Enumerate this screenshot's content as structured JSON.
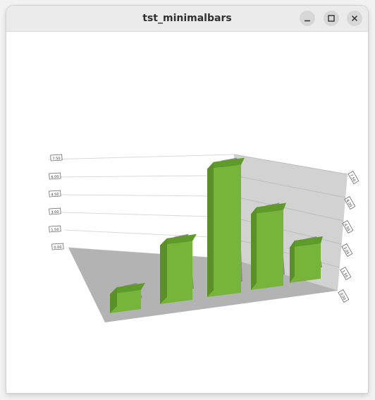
{
  "window": {
    "title": "tst_minimalbars",
    "controls": {
      "minimize_icon": "minimize-icon",
      "maximize_icon": "maximize-icon",
      "close_icon": "close-icon"
    }
  },
  "colors": {
    "bar_front": "#76b53a",
    "bar_top": "#5f9b2b",
    "bar_side": "#5a8f2a",
    "floor": "#b3b3b3",
    "back_wall": "#d2d2d2",
    "shadow": "#8c8c8c"
  },
  "chart_data": {
    "type": "bar",
    "title": "",
    "xlabel": "",
    "ylabel": "",
    "categories": [
      "",
      "",
      "",
      "",
      ""
    ],
    "values": [
      1.1,
      3.6,
      7.5,
      4.7,
      2.2
    ],
    "ylim": [
      0,
      7.5
    ],
    "y_ticks_left": [
      "0.00",
      "1.50",
      "3.00",
      "4.50",
      "6.00",
      "7.50"
    ],
    "y_ticks_right": [
      "0.00",
      "1.50",
      "3.00",
      "4.50",
      "6.00",
      "7.50"
    ],
    "grid": true,
    "legend": "none"
  }
}
